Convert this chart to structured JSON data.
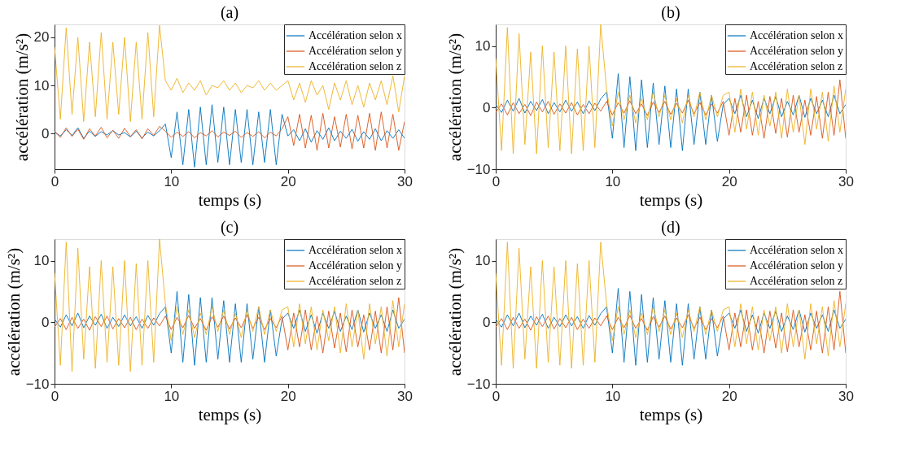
{
  "chart_data": [
    {
      "type": "line",
      "title": "(a)",
      "xlabel": "temps (s)",
      "ylabel": "accélération (m/s²)",
      "xlim": [
        0,
        30
      ],
      "xticks": [
        0,
        10,
        20,
        30
      ],
      "ylim": [
        -7.4,
        22.7
      ],
      "yticks": [
        0,
        10,
        20
      ],
      "legend": "top right",
      "x": [
        0,
        0.5,
        1,
        1.5,
        2,
        2.5,
        3,
        3.5,
        4,
        4.5,
        5,
        5.5,
        6,
        6.5,
        7,
        7.5,
        8,
        8.5,
        9,
        9.5,
        10,
        10.5,
        11,
        11.5,
        12,
        12.5,
        13,
        13.5,
        14,
        14.5,
        15,
        15.5,
        16,
        16.5,
        17,
        17.5,
        18,
        18.5,
        19,
        19.5,
        20,
        20.5,
        21,
        21.5,
        22,
        22.5,
        23,
        23.5,
        24,
        24.5,
        25,
        25.5,
        26,
        26.5,
        27,
        27.5,
        28,
        28.5,
        29,
        29.5,
        30
      ],
      "series": [
        {
          "name": "Accélération selon x",
          "color": "#0072bd",
          "values": [
            0.3,
            -0.5,
            0.8,
            -0.4,
            1.2,
            -1.0,
            0.5,
            -0.6,
            0.4,
            -0.3,
            0.6,
            -0.3,
            0.2,
            -0.7,
            0.5,
            -0.9,
            0.3,
            -0.5,
            0.6,
            2.0,
            -5.0,
            4.5,
            -6.5,
            5.0,
            -7.0,
            5.5,
            -6.5,
            6.0,
            -6.0,
            5.5,
            -6.5,
            5.0,
            -6.0,
            5.0,
            -6.5,
            4.5,
            -6.0,
            5.0,
            -6.5,
            4.0,
            -0.5,
            0.8,
            -1.5,
            1.0,
            -1.8,
            0.6,
            -1.2,
            1.2,
            -1.5,
            0.5,
            -1.0,
            0.9,
            -1.6,
            0.4,
            -1.2,
            1.0,
            -1.5,
            0.6,
            -1.0,
            0.8,
            -1.0
          ]
        },
        {
          "name": "Accélération selon y",
          "color": "#d95319",
          "values": [
            0.5,
            -0.8,
            1.2,
            -0.6,
            0.9,
            -1.2,
            1.0,
            -0.5,
            1.3,
            -0.9,
            0.7,
            -1.0,
            1.1,
            -0.6,
            0.8,
            -1.1,
            1.0,
            -0.4,
            1.5,
            0.5,
            -0.8,
            0.3,
            -0.6,
            0.4,
            -0.9,
            0.2,
            -0.5,
            0.6,
            -0.7,
            0.3,
            -0.4,
            0.5,
            -0.8,
            0.2,
            -0.6,
            0.4,
            -0.9,
            0.3,
            -0.5,
            1.0,
            3.5,
            -2.5,
            4.0,
            -3.0,
            3.8,
            -3.5,
            4.2,
            -3.0,
            3.5,
            -2.8,
            4.0,
            -3.2,
            3.8,
            -3.0,
            4.2,
            -3.5,
            4.5,
            -3.0,
            4.0,
            -3.5,
            2.5
          ]
        },
        {
          "name": "Accélération selon z",
          "color": "#edb120",
          "values": [
            18,
            3,
            22,
            4,
            20,
            2.5,
            19,
            3.5,
            21,
            3,
            19,
            4,
            20,
            2.5,
            19,
            3,
            21,
            3.5,
            22.5,
            11,
            9,
            11.5,
            8.5,
            10.5,
            9,
            11,
            8,
            10,
            9.5,
            11,
            9,
            10.5,
            8.5,
            10,
            9.5,
            11,
            9,
            10.5,
            9,
            10,
            11,
            7,
            10.5,
            6.5,
            11,
            8,
            10,
            5,
            10.5,
            7,
            11,
            6,
            10,
            5.5,
            10.5,
            7,
            11,
            6,
            12,
            4.5,
            12
          ]
        }
      ]
    },
    {
      "type": "line",
      "title": "(b)",
      "xlabel": "temps (s)",
      "ylabel": "accélération (m/s²)",
      "xlim": [
        0,
        30
      ],
      "xticks": [
        0,
        10,
        20,
        30
      ],
      "ylim": [
        -10,
        13.5
      ],
      "yticks": [
        -10,
        0,
        10
      ],
      "legend": "top right",
      "x": [
        0,
        0.5,
        1,
        1.5,
        2,
        2.5,
        3,
        3.5,
        4,
        4.5,
        5,
        5.5,
        6,
        6.5,
        7,
        7.5,
        8,
        8.5,
        9,
        9.5,
        10,
        10.5,
        11,
        11.5,
        12,
        12.5,
        13,
        13.5,
        14,
        14.5,
        15,
        15.5,
        16,
        16.5,
        17,
        17.5,
        18,
        18.5,
        19,
        19.5,
        20,
        20.5,
        21,
        21.5,
        22,
        22.5,
        23,
        23.5,
        24,
        24.5,
        25,
        25.5,
        26,
        26.5,
        27,
        27.5,
        28,
        28.5,
        29,
        29.5,
        30
      ],
      "series": [
        {
          "name": "Accélération selon x",
          "color": "#0072bd",
          "values": [
            0.5,
            -0.8,
            1.2,
            -0.6,
            1.5,
            -0.9,
            1.0,
            -0.5,
            1.3,
            -1.0,
            0.8,
            -0.7,
            1.2,
            -0.6,
            0.9,
            -1.0,
            1.1,
            -0.5,
            1.4,
            2.5,
            -5.0,
            5.5,
            -6.5,
            5.0,
            -7.0,
            4.5,
            -6.5,
            4.0,
            -6.0,
            3.5,
            -6.5,
            3.0,
            -7.0,
            3.0,
            -6.0,
            2.5,
            -6.0,
            2.0,
            -5.5,
            0.5,
            1.5,
            -1.0,
            2.0,
            -1.5,
            1.2,
            -1.8,
            1.5,
            -1.0,
            1.8,
            -1.5,
            1.0,
            -1.2,
            2.0,
            -1.6,
            1.5,
            -1.0,
            1.2,
            -1.5,
            2.0,
            -1.0,
            0.5
          ]
        },
        {
          "name": "Accélération selon y",
          "color": "#d95319",
          "values": [
            -0.8,
            0.6,
            -1.2,
            0.8,
            -1.0,
            0.5,
            -1.3,
            0.9,
            -0.7,
            1.0,
            -1.1,
            0.6,
            -0.9,
            0.8,
            -1.2,
            0.5,
            -1.0,
            0.7,
            -0.6,
            1.0,
            -1.2,
            0.8,
            -0.9,
            1.1,
            -1.0,
            0.6,
            -1.3,
            0.9,
            -0.8,
            1.0,
            -1.1,
            0.7,
            -0.9,
            1.2,
            -1.0,
            0.8,
            -1.2,
            0.6,
            -0.9,
            1.0,
            -4.5,
            1.5,
            -4.0,
            2.0,
            -4.5,
            1.0,
            -5.0,
            1.8,
            -4.2,
            1.5,
            -4.8,
            2.0,
            -4.0,
            1.2,
            -4.5,
            1.8,
            -5.0,
            2.5,
            -4.5,
            4.5,
            -5.0
          ]
        },
        {
          "name": "Accélération selon z",
          "color": "#edb120",
          "values": [
            8,
            -7,
            13,
            -7.5,
            12,
            -6,
            9,
            -7.5,
            10,
            -6.5,
            9,
            -7,
            10,
            -7.5,
            9.5,
            -7,
            10,
            -6.5,
            13.5,
            3,
            -3,
            2.5,
            -2,
            2,
            -2.5,
            1.5,
            -2,
            2.5,
            -1.5,
            2,
            -2,
            1.5,
            -2.5,
            2,
            -1.5,
            2.5,
            -2,
            2,
            -1.5,
            2,
            2.5,
            -4,
            3,
            -3.5,
            2.5,
            -4.5,
            2,
            -3,
            2.5,
            -5,
            3,
            -4,
            2,
            -6,
            3,
            -3.5,
            2.5,
            -5.5,
            3.5,
            -4,
            3
          ]
        }
      ]
    },
    {
      "type": "line",
      "title": "(c)",
      "xlabel": "temps (s)",
      "ylabel": "accélération (m/s²)",
      "xlim": [
        0,
        30
      ],
      "xticks": [
        0,
        10,
        20,
        30
      ],
      "ylim": [
        -10,
        13.5
      ],
      "yticks": [
        -10,
        0,
        10
      ],
      "legend": "top right",
      "x": [
        0,
        0.5,
        1,
        1.5,
        2,
        2.5,
        3,
        3.5,
        4,
        4.5,
        5,
        5.5,
        6,
        6.5,
        7,
        7.5,
        8,
        8.5,
        9,
        9.5,
        10,
        10.5,
        11,
        11.5,
        12,
        12.5,
        13,
        13.5,
        14,
        14.5,
        15,
        15.5,
        16,
        16.5,
        17,
        17.5,
        18,
        18.5,
        19,
        19.5,
        20,
        20.5,
        21,
        21.5,
        22,
        22.5,
        23,
        23.5,
        24,
        24.5,
        25,
        25.5,
        26,
        26.5,
        27,
        27.5,
        28,
        28.5,
        29,
        29.5,
        30
      ],
      "series": [
        {
          "name": "Accélération selon x",
          "color": "#0072bd",
          "values": [
            0.5,
            -0.8,
            1.2,
            -0.6,
            1.5,
            -0.9,
            1.0,
            -0.5,
            1.3,
            -1.0,
            0.8,
            -0.7,
            1.2,
            -0.6,
            0.9,
            -1.0,
            1.1,
            -0.5,
            1.4,
            2.5,
            -5.0,
            5.0,
            -6.5,
            4.5,
            -7.0,
            4.0,
            -6.5,
            4.0,
            -6.0,
            3.5,
            -6.5,
            3.0,
            -6.5,
            3.0,
            -6.0,
            2.5,
            -6.5,
            2.0,
            -5.5,
            0.5,
            1.5,
            -1.0,
            2.0,
            -1.5,
            1.2,
            -1.8,
            1.5,
            -1.0,
            1.8,
            -1.5,
            1.0,
            -1.2,
            2.0,
            -1.6,
            1.5,
            -1.0,
            1.2,
            -1.5,
            2.0,
            -1.0,
            0.5
          ]
        },
        {
          "name": "Accélération selon y",
          "color": "#d95319",
          "values": [
            -0.8,
            0.6,
            -1.2,
            0.8,
            -1.0,
            0.5,
            -1.3,
            0.9,
            -0.7,
            1.0,
            -1.1,
            0.6,
            -0.9,
            0.8,
            -1.2,
            0.5,
            -1.0,
            0.7,
            -0.6,
            1.0,
            -1.2,
            0.8,
            -0.9,
            1.1,
            -1.0,
            0.6,
            -1.3,
            0.9,
            -0.8,
            1.0,
            -1.1,
            0.7,
            -0.9,
            1.2,
            -1.0,
            0.8,
            -1.2,
            0.6,
            -0.9,
            1.0,
            -4.5,
            1.5,
            -4.0,
            2.0,
            -4.5,
            1.0,
            -5.0,
            1.8,
            -4.2,
            1.5,
            -4.8,
            2.0,
            -4.0,
            1.2,
            -4.5,
            1.8,
            -5.0,
            2.5,
            -4.5,
            4.0,
            -5.0
          ]
        },
        {
          "name": "Accélération selon z",
          "color": "#edb120",
          "values": [
            8,
            -7,
            13,
            -8,
            12,
            -6,
            9,
            -7.5,
            10,
            -6.5,
            9,
            -7,
            10,
            -8,
            9.5,
            -7,
            10,
            -6.5,
            13.5,
            3,
            -3,
            2.5,
            -2,
            2,
            -2.5,
            1.5,
            -2,
            2.5,
            -1.5,
            2,
            -2,
            1.5,
            -2.5,
            2,
            -1.5,
            2.5,
            -2,
            2,
            -1.5,
            2,
            2.5,
            -4,
            3,
            -3.5,
            2.5,
            -4.5,
            2,
            -3,
            2.5,
            -5,
            3,
            -4,
            2,
            -6,
            3,
            -3.5,
            2.5,
            -5.5,
            3.5,
            -4,
            3
          ]
        }
      ]
    },
    {
      "type": "line",
      "title": "(d)",
      "xlabel": "temps (s)",
      "ylabel": "accélération (m/s²)",
      "xlim": [
        0,
        30
      ],
      "xticks": [
        0,
        10,
        20,
        30
      ],
      "ylim": [
        -10,
        13.5
      ],
      "yticks": [
        -10,
        0,
        10
      ],
      "legend": "top right",
      "x": [
        0,
        0.5,
        1,
        1.5,
        2,
        2.5,
        3,
        3.5,
        4,
        4.5,
        5,
        5.5,
        6,
        6.5,
        7,
        7.5,
        8,
        8.5,
        9,
        9.5,
        10,
        10.5,
        11,
        11.5,
        12,
        12.5,
        13,
        13.5,
        14,
        14.5,
        15,
        15.5,
        16,
        16.5,
        17,
        17.5,
        18,
        18.5,
        19,
        19.5,
        20,
        20.5,
        21,
        21.5,
        22,
        22.5,
        23,
        23.5,
        24,
        24.5,
        25,
        25.5,
        26,
        26.5,
        27,
        27.5,
        28,
        28.5,
        29,
        29.5,
        30
      ],
      "series": [
        {
          "name": "Accélération selon x",
          "color": "#0072bd",
          "values": [
            0.5,
            -0.8,
            1.2,
            -0.6,
            1.5,
            -0.9,
            1.0,
            -0.5,
            1.3,
            -1.0,
            0.8,
            -0.7,
            1.2,
            -0.6,
            0.9,
            -1.0,
            1.1,
            -0.5,
            1.4,
            2.5,
            -5.0,
            5.5,
            -6.5,
            5.0,
            -7.0,
            4.5,
            -6.5,
            4.0,
            -6.0,
            3.5,
            -6.5,
            3.0,
            -7.0,
            3.0,
            -6.0,
            2.5,
            -6.0,
            2.0,
            -5.5,
            0.5,
            1.5,
            -1.0,
            2.0,
            -1.5,
            1.2,
            -1.8,
            1.5,
            -1.0,
            1.8,
            -1.5,
            1.0,
            -1.2,
            2.0,
            -1.6,
            1.5,
            -1.0,
            1.2,
            -1.5,
            2.0,
            -1.0,
            0.5
          ]
        },
        {
          "name": "Accélération selon y",
          "color": "#d95319",
          "values": [
            -0.8,
            0.6,
            -1.2,
            0.8,
            -1.0,
            0.5,
            -1.3,
            0.9,
            -0.7,
            1.0,
            -1.1,
            0.6,
            -0.9,
            0.8,
            -1.2,
            0.5,
            -1.0,
            0.7,
            -0.6,
            1.0,
            -1.2,
            0.8,
            -0.9,
            1.1,
            -1.0,
            0.6,
            -1.3,
            0.9,
            -0.8,
            1.0,
            -1.1,
            0.7,
            -0.9,
            1.2,
            -1.0,
            0.8,
            -1.2,
            0.6,
            -0.9,
            1.0,
            -4.5,
            1.5,
            -4.0,
            2.0,
            -4.5,
            1.0,
            -5.0,
            1.8,
            -4.2,
            1.5,
            -4.8,
            2.0,
            -4.0,
            1.2,
            -4.5,
            1.8,
            -5.0,
            2.5,
            -4.5,
            5.0,
            -5.0
          ]
        },
        {
          "name": "Accélération selon z",
          "color": "#edb120",
          "values": [
            8,
            -7,
            13,
            -7.5,
            12,
            -6,
            9,
            -7.5,
            10,
            -6.5,
            9,
            -7,
            10,
            -7.5,
            9.5,
            -7,
            10,
            -6.5,
            13,
            3,
            -3,
            2.5,
            -2,
            2,
            -2.5,
            1.5,
            -2,
            2.5,
            -1.5,
            2,
            -2,
            1.5,
            -2.5,
            2,
            -1.5,
            2.5,
            -2,
            2,
            -1.5,
            2,
            2.5,
            -4,
            3,
            -3.5,
            2.5,
            -4.5,
            2,
            -3,
            2.5,
            -5,
            3,
            -4,
            2,
            -6,
            3,
            -3.5,
            2.5,
            -5.5,
            3.5,
            -4,
            3
          ]
        }
      ]
    }
  ]
}
